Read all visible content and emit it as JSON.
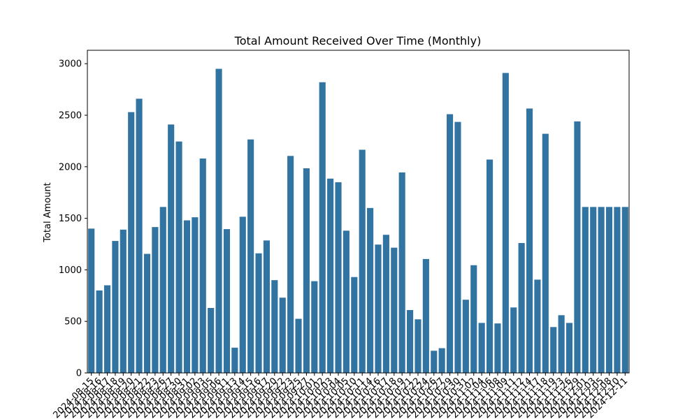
{
  "chart_data": {
    "type": "bar",
    "title": "Total Amount Received Over Time (Monthly)",
    "xlabel": "",
    "ylabel": "Total Amount",
    "ylim": [
      0,
      3130
    ],
    "yticks": [
      0,
      500,
      1000,
      1500,
      2000,
      2500,
      3000
    ],
    "grid": false,
    "bar_color": "#3274a1",
    "categories": [
      "2024-08-15",
      "2024-08-16",
      "2024-08-17",
      "2024-08-18",
      "2024-08-19",
      "2024-08-20",
      "2024-08-21",
      "2024-08-22",
      "2024-08-23",
      "2024-08-26",
      "2024-08-27",
      "2024-08-30",
      "2024-08-31",
      "2024-09-02",
      "2024-09-03",
      "2024-09-05",
      "2024-09-06",
      "2024-09-11",
      "2024-09-13",
      "2024-09-14",
      "2024-09-15",
      "2024-09-16",
      "2024-09-17",
      "2024-09-20",
      "2024-09-22",
      "2024-09-23",
      "2024-09-25",
      "2024-09-27",
      "2024-10-01",
      "2024-10-02",
      "2024-10-03",
      "2024-10-04",
      "2024-10-05",
      "2024-10-10",
      "2024-10-11",
      "2024-10-14",
      "2024-10-16",
      "2024-10-17",
      "2024-10-18",
      "2024-10-19",
      "2024-10-21",
      "2024-10-22",
      "2024-10-24",
      "2024-10-26",
      "2024-10-27",
      "2024-10-29",
      "2024-10-30",
      "2024-10-31",
      "2024-11-02",
      "2024-11-04",
      "2024-11-06",
      "2024-11-08",
      "2024-11-09",
      "2024-11-11",
      "2024-11-12",
      "2024-11-14",
      "2024-11-17",
      "2024-11-18",
      "2024-11-19",
      "2024-11-23",
      "2024-11-26",
      "2024-11-29",
      "2024-12-01",
      "2024-12-03",
      "2024-12-05",
      "2024-12-08",
      "2024-12-10",
      "2024-12-11"
    ],
    "values": [
      1400,
      800,
      850,
      1280,
      1390,
      2530,
      2660,
      1155,
      1415,
      1610,
      2410,
      2245,
      1480,
      1510,
      2080,
      630,
      2950,
      1395,
      245,
      1515,
      2265,
      1160,
      1285,
      900,
      730,
      2105,
      525,
      1985,
      890,
      2820,
      1885,
      1850,
      1380,
      930,
      2165,
      1600,
      1245,
      1340,
      1215,
      1945,
      610,
      520,
      1105,
      215,
      240,
      2510,
      2435,
      710,
      1045,
      485,
      2070,
      480,
      2910,
      635,
      1260,
      2565,
      905,
      2320,
      445,
      560,
      485,
      2440,
      1610,
      1610,
      1610,
      1610,
      1610,
      1610
    ]
  }
}
